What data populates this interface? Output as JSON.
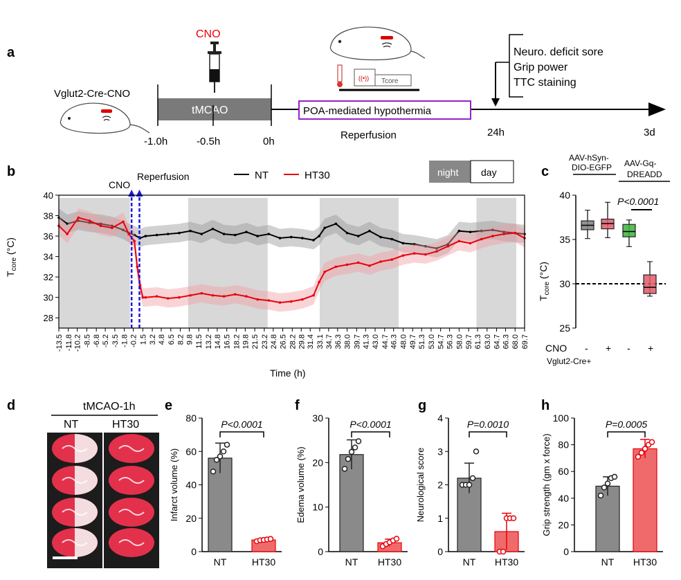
{
  "panels": {
    "a": "a",
    "b": "b",
    "c": "c",
    "d": "d",
    "e": "e",
    "f": "f",
    "g": "g",
    "h": "h"
  },
  "timeline": {
    "cno_label": "CNO",
    "mouse_label": "Vglut2-Cre-CNO",
    "tmcao_label": "tMCAO",
    "ticks": [
      "-1.0h",
      "-0.5h",
      "0h"
    ],
    "hypothermia_label": "POA-mediated hypothermia",
    "reperfusion_label": "Reperfusion",
    "tcore_label": "Tcore",
    "outcomes": [
      "Neuro. deficit sore",
      "Grip power",
      "TTC staining"
    ],
    "t24": "24h",
    "t3d": "3d",
    "colors": {
      "cno": "#e8000a",
      "box": "#9a1fc9",
      "tmcao_bar": "#7a7a7a"
    }
  },
  "panel_b": {
    "cno_label": "CNO",
    "reperfusion_label": "Reperfusion",
    "legend_nt": "NT",
    "legend_ht30": "HT30",
    "night_label": "night",
    "day_label": "day",
    "ylabel_main": "T",
    "ylabel_sub": "core",
    "ylabel_unit": " (°C)",
    "xlabel": "Time (h)",
    "yticks": [
      "40",
      "38",
      "36",
      "34",
      "32",
      "30",
      "28"
    ],
    "xticks": [
      "-13.5",
      "-11.8",
      "-10.2",
      "-8.5",
      "-6.8",
      "-5.2",
      "-3.5",
      "-1.8",
      "-0.2",
      "1.5",
      "3.2",
      "4.8",
      "6.5",
      "8.2",
      "9.8",
      "11.5",
      "13.2",
      "14.8",
      "16.5",
      "18.2",
      "19.8",
      "21.5",
      "23.2",
      "24.8",
      "26.5",
      "28.2",
      "29.8",
      "31.4",
      "33.1",
      "34.7",
      "36.3",
      "38.0",
      "39.7",
      "41.3",
      "43.0",
      "44.7",
      "46.3",
      "48.0",
      "49.7",
      "51.3",
      "53.0",
      "54.7",
      "56.3",
      "58.0",
      "59.7",
      "61.3",
      "63.0",
      "64.7",
      "66.3",
      "68.0",
      "69.7"
    ],
    "colors": {
      "nt": "#000000",
      "ht30": "#e8000a",
      "night": "#d8d8d8"
    }
  },
  "panel_c": {
    "group1": "AAV-hSyn-DIO-EGFP",
    "group2": "AAV-Gq-DREADD",
    "p_value": "P<0.0001",
    "ylabel_main": "T",
    "ylabel_sub": "core",
    "ylabel_unit": " (°C)",
    "yticks": [
      "40",
      "35",
      "30",
      "25"
    ],
    "cno_label": "CNO",
    "cno_signs": [
      "-",
      "+",
      "-",
      "+"
    ],
    "genotype": "Vglut2-Cre+"
  },
  "panel_d": {
    "title": "tMCAO-1h",
    "nt": "NT",
    "ht30": "HT30"
  },
  "chart_data": [
    {
      "type": "line",
      "title": "",
      "xlabel": "Time (h)",
      "ylabel": "Tcore (°C)",
      "ylim": [
        27,
        40
      ],
      "xlim": [
        -13.5,
        69.7
      ],
      "shaded_night_intervals": [
        [
          -13.5,
          -0.8
        ],
        [
          9.6,
          23.8
        ],
        [
          33.1,
          47.2
        ],
        [
          61.1,
          75.3
        ]
      ],
      "series": [
        {
          "name": "NT",
          "x": [
            -13.5,
            -12,
            -10,
            -8,
            -6,
            -4,
            -2,
            -1,
            0,
            1,
            2,
            4,
            6,
            8,
            10,
            12,
            14,
            16,
            18,
            20,
            22,
            24,
            26,
            28,
            30,
            32,
            33,
            34,
            36,
            38,
            40,
            42,
            44,
            46,
            48,
            50,
            52,
            54,
            56,
            58,
            60,
            62,
            64,
            66,
            68,
            69.7
          ],
          "y": [
            37.8,
            37.2,
            37.5,
            37.3,
            37.2,
            37.0,
            36.6,
            36.3,
            36.1,
            35.8,
            36.0,
            36.1,
            36.2,
            36.3,
            36.5,
            36.2,
            36.7,
            36.2,
            36.1,
            36.4,
            36.0,
            36.2,
            35.8,
            35.9,
            35.8,
            35.6,
            36.0,
            36.8,
            37.2,
            36.3,
            36.0,
            36.5,
            35.9,
            35.7,
            35.3,
            35.2,
            35.0,
            34.8,
            35.2,
            36.5,
            36.4,
            36.5,
            36.6,
            36.4,
            36.3,
            36.2
          ]
        },
        {
          "name": "HT30",
          "x": [
            -13.5,
            -12,
            -10,
            -8,
            -6,
            -4,
            -2,
            -1,
            0,
            0.5,
            1,
            1.5,
            2,
            4,
            6,
            8,
            10,
            12,
            14,
            16,
            18,
            20,
            22,
            24,
            26,
            28,
            30,
            32,
            33,
            34,
            36,
            38,
            40,
            42,
            44,
            46,
            48,
            50,
            52,
            54,
            56,
            58,
            60,
            62,
            64,
            66,
            68,
            69.7
          ],
          "y": [
            37.0,
            36.2,
            37.8,
            37.5,
            37.0,
            36.8,
            37.4,
            36.2,
            35.5,
            33.0,
            31.2,
            30.0,
            30.0,
            30.1,
            29.9,
            30.0,
            30.2,
            30.4,
            30.2,
            30.1,
            30.3,
            30.1,
            29.8,
            29.7,
            29.5,
            29.6,
            29.8,
            30.2,
            31.5,
            32.5,
            33.0,
            33.2,
            33.4,
            33.1,
            33.5,
            33.7,
            34.1,
            34.3,
            34.2,
            34.5,
            35.0,
            35.5,
            35.3,
            35.7,
            36.0,
            36.2,
            36.3,
            35.8
          ]
        }
      ]
    },
    {
      "type": "box",
      "ylabel": "Tcore (°C)",
      "ylim": [
        25,
        40
      ],
      "reference_line": 30,
      "categories": [
        "AAV-hSyn-DIO-EGFP CNO-",
        "AAV-hSyn-DIO-EGFP CNO+",
        "AAV-Gq-DREADD CNO-",
        "AAV-Gq-DREADD CNO+"
      ],
      "series": [
        {
          "name": "boxes",
          "min": [
            35.1,
            35.2,
            34.2,
            28.6
          ],
          "q1": [
            36.1,
            36.2,
            35.3,
            28.9
          ],
          "median": [
            36.6,
            36.8,
            35.9,
            29.6
          ],
          "q3": [
            37.1,
            37.3,
            36.7,
            31.0
          ],
          "max": [
            38.3,
            39.2,
            37.2,
            32.5
          ]
        }
      ],
      "colors": [
        "#808080",
        "#e05a6a",
        "#3cb43c",
        "#e05a6a"
      ]
    },
    {
      "type": "bar",
      "ylabel": "Infarct volume (%)",
      "ylim": [
        0,
        80
      ],
      "yticks": [
        "80",
        "60",
        "40",
        "20",
        "0"
      ],
      "categories": [
        "NT",
        "HT30"
      ],
      "values": [
        56,
        7
      ],
      "errors": [
        9,
        1
      ],
      "points": [
        [
          48,
          55,
          57,
          60,
          64
        ],
        [
          6.2,
          6.8,
          7.0,
          7.3,
          7.6
        ]
      ],
      "p_value": "P<0.0001"
    },
    {
      "type": "bar",
      "ylabel": "Edema volume (%)",
      "ylim": [
        0,
        30
      ],
      "yticks": [
        "30",
        "20",
        "10",
        "0"
      ],
      "categories": [
        "NT",
        "HT30"
      ],
      "values": [
        21.8,
        2.0
      ],
      "errors": [
        3.3,
        0.8
      ],
      "points": [
        [
          18.6,
          20.8,
          22.4,
          23.4,
          24.8
        ],
        [
          1.2,
          1.7,
          2.1,
          2.5,
          2.9
        ]
      ],
      "p_value": "P<0.0001"
    },
    {
      "type": "bar",
      "ylabel": "Neurological score",
      "ylim": [
        0,
        4
      ],
      "yticks": [
        "4",
        "3",
        "2",
        "1",
        "0"
      ],
      "categories": [
        "NT",
        "HT30"
      ],
      "values": [
        2.2,
        0.6
      ],
      "errors": [
        0.45,
        0.55
      ],
      "points": [
        [
          2.0,
          2.0,
          2.0,
          2.2,
          3.0
        ],
        [
          0,
          0,
          1,
          1,
          1
        ]
      ],
      "p_value": "P=0.0010"
    },
    {
      "type": "bar",
      "ylabel": "Grip strength (gm x force)",
      "ylim": [
        0,
        100
      ],
      "yticks": [
        "100",
        "80",
        "60",
        "40",
        "20",
        "0"
      ],
      "categories": [
        "NT",
        "HT30"
      ],
      "values": [
        49,
        77
      ],
      "errors": [
        7,
        7
      ],
      "points": [
        [
          42,
          48,
          51,
          55,
          56
        ],
        [
          71,
          74,
          77,
          80,
          82
        ]
      ],
      "p_value": "P=0.0005"
    }
  ]
}
